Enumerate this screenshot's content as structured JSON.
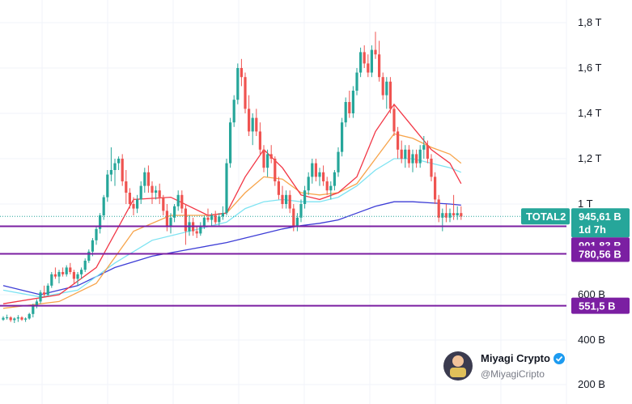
{
  "chart_data": {
    "type": "candlestick",
    "symbol": "TOTAL2",
    "price_scale": {
      "ticks": [
        {
          "value": 1800,
          "label": "1,8 T"
        },
        {
          "value": 1600,
          "label": "1,6 T"
        },
        {
          "value": 1400,
          "label": "1,4 T"
        },
        {
          "value": 1200,
          "label": "1,2 T"
        },
        {
          "value": 1000,
          "label": "1 T"
        },
        {
          "value": 600,
          "label": "600 B"
        },
        {
          "value": 400,
          "label": "400 B"
        },
        {
          "value": 200,
          "label": "200 B"
        }
      ],
      "unit": "B"
    },
    "current": {
      "symbol": "TOTAL2",
      "price_label": "945,61 B",
      "countdown": "1d 7h",
      "value": 945.61
    },
    "levels": [
      {
        "value": 901.83,
        "label": "901,83 B"
      },
      {
        "value": 780.56,
        "label": "780,56 B"
      },
      {
        "value": 551.5,
        "label": "551,5 B"
      }
    ],
    "colors": {
      "up": "#26a69a",
      "down": "#ef5350",
      "level": "#7b1fa2",
      "ma_red": "#f23645",
      "ma_orange": "#f7a44a",
      "ma_cyan": "#7de3f2",
      "ma_blue": "#3d3dd6",
      "label_teal": "#26a69a",
      "label_purple": "#7b1fa2"
    },
    "candles": [
      [
        490,
        505,
        485,
        498
      ],
      [
        498,
        512,
        490,
        500
      ],
      [
        500,
        505,
        480,
        488
      ],
      [
        488,
        500,
        475,
        495
      ],
      [
        495,
        510,
        480,
        500
      ],
      [
        500,
        505,
        485,
        490
      ],
      [
        490,
        500,
        480,
        495
      ],
      [
        495,
        520,
        490,
        515
      ],
      [
        515,
        560,
        500,
        550
      ],
      [
        550,
        580,
        540,
        570
      ],
      [
        570,
        620,
        560,
        610
      ],
      [
        610,
        640,
        590,
        600
      ],
      [
        600,
        650,
        595,
        640
      ],
      [
        640,
        700,
        630,
        690
      ],
      [
        690,
        720,
        670,
        680
      ],
      [
        680,
        710,
        650,
        700
      ],
      [
        700,
        720,
        680,
        690
      ],
      [
        690,
        730,
        680,
        720
      ],
      [
        720,
        740,
        690,
        700
      ],
      [
        700,
        710,
        650,
        670
      ],
      [
        670,
        700,
        640,
        690
      ],
      [
        690,
        720,
        670,
        710
      ],
      [
        710,
        760,
        700,
        750
      ],
      [
        750,
        800,
        740,
        790
      ],
      [
        790,
        850,
        770,
        840
      ],
      [
        840,
        900,
        820,
        890
      ],
      [
        890,
        960,
        870,
        950
      ],
      [
        950,
        1040,
        930,
        1030
      ],
      [
        1030,
        1150,
        1010,
        1130
      ],
      [
        1130,
        1250,
        1100,
        1150
      ],
      [
        1150,
        1200,
        1080,
        1180
      ],
      [
        1180,
        1210,
        1150,
        1200
      ],
      [
        1200,
        1220,
        1080,
        1100
      ],
      [
        1100,
        1150,
        1000,
        1050
      ],
      [
        1050,
        1070,
        980,
        1000
      ],
      [
        1000,
        1030,
        950,
        980
      ],
      [
        980,
        1040,
        960,
        1020
      ],
      [
        1020,
        1100,
        1000,
        1080
      ],
      [
        1080,
        1160,
        1050,
        1140
      ],
      [
        1140,
        1170,
        1050,
        1080
      ],
      [
        1080,
        1100,
        1000,
        1050
      ],
      [
        1050,
        1080,
        1020,
        1060
      ],
      [
        1060,
        1090,
        1000,
        1030
      ],
      [
        1030,
        1040,
        950,
        970
      ],
      [
        970,
        1000,
        880,
        900
      ],
      [
        900,
        960,
        870,
        940
      ],
      [
        940,
        1000,
        920,
        990
      ],
      [
        990,
        1060,
        970,
        1040
      ],
      [
        1040,
        1060,
        960,
        980
      ],
      [
        980,
        1000,
        820,
        880
      ],
      [
        880,
        950,
        860,
        920
      ],
      [
        920,
        940,
        860,
        880
      ],
      [
        880,
        900,
        850,
        870
      ],
      [
        870,
        920,
        860,
        900
      ],
      [
        900,
        950,
        890,
        940
      ],
      [
        940,
        980,
        920,
        930
      ],
      [
        930,
        960,
        900,
        950
      ],
      [
        950,
        970,
        910,
        920
      ],
      [
        920,
        960,
        900,
        945
      ],
      [
        945,
        990,
        930,
        960
      ],
      [
        960,
        1200,
        950,
        1180
      ],
      [
        1180,
        1380,
        1160,
        1360
      ],
      [
        1360,
        1480,
        1340,
        1460
      ],
      [
        1460,
        1620,
        1440,
        1600
      ],
      [
        1600,
        1640,
        1520,
        1560
      ],
      [
        1560,
        1580,
        1400,
        1420
      ],
      [
        1420,
        1480,
        1300,
        1320
      ],
      [
        1320,
        1400,
        1260,
        1380
      ],
      [
        1380,
        1420,
        1300,
        1320
      ],
      [
        1320,
        1360,
        1220,
        1240
      ],
      [
        1240,
        1260,
        1140,
        1160
      ],
      [
        1160,
        1240,
        1120,
        1220
      ],
      [
        1220,
        1260,
        1180,
        1200
      ],
      [
        1200,
        1210,
        1080,
        1100
      ],
      [
        1100,
        1120,
        1020,
        1040
      ],
      [
        1040,
        1080,
        980,
        1000
      ],
      [
        1000,
        1060,
        980,
        1040
      ],
      [
        1040,
        1060,
        960,
        980
      ],
      [
        980,
        1000,
        880,
        900
      ],
      [
        900,
        960,
        880,
        940
      ],
      [
        940,
        1020,
        920,
        1000
      ],
      [
        1000,
        1080,
        980,
        1060
      ],
      [
        1060,
        1140,
        1040,
        1120
      ],
      [
        1120,
        1200,
        1090,
        1180
      ],
      [
        1180,
        1200,
        1100,
        1120
      ],
      [
        1120,
        1160,
        1080,
        1140
      ],
      [
        1140,
        1170,
        1080,
        1100
      ],
      [
        1100,
        1120,
        1040,
        1060
      ],
      [
        1060,
        1100,
        1020,
        1080
      ],
      [
        1080,
        1150,
        1060,
        1140
      ],
      [
        1140,
        1250,
        1120,
        1230
      ],
      [
        1230,
        1380,
        1210,
        1360
      ],
      [
        1360,
        1470,
        1340,
        1450
      ],
      [
        1450,
        1500,
        1380,
        1400
      ],
      [
        1400,
        1520,
        1380,
        1500
      ],
      [
        1500,
        1600,
        1480,
        1580
      ],
      [
        1580,
        1690,
        1560,
        1670
      ],
      [
        1670,
        1700,
        1600,
        1620
      ],
      [
        1620,
        1660,
        1560,
        1580
      ],
      [
        1580,
        1700,
        1560,
        1680
      ],
      [
        1680,
        1760,
        1640,
        1660
      ],
      [
        1660,
        1720,
        1540,
        1560
      ],
      [
        1560,
        1580,
        1460,
        1480
      ],
      [
        1480,
        1560,
        1420,
        1540
      ],
      [
        1540,
        1560,
        1400,
        1420
      ],
      [
        1420,
        1440,
        1300,
        1320
      ],
      [
        1320,
        1340,
        1200,
        1240
      ],
      [
        1240,
        1280,
        1180,
        1200
      ],
      [
        1200,
        1260,
        1160,
        1240
      ],
      [
        1240,
        1260,
        1160,
        1180
      ],
      [
        1180,
        1240,
        1140,
        1220
      ],
      [
        1220,
        1240,
        1160,
        1180
      ],
      [
        1180,
        1260,
        1160,
        1240
      ],
      [
        1240,
        1300,
        1200,
        1260
      ],
      [
        1260,
        1280,
        1180,
        1200
      ],
      [
        1200,
        1220,
        1100,
        1120
      ],
      [
        1120,
        1140,
        1000,
        1020
      ],
      [
        1020,
        1040,
        920,
        940
      ],
      [
        940,
        980,
        880,
        960
      ],
      [
        960,
        1000,
        920,
        940
      ],
      [
        940,
        980,
        920,
        960
      ],
      [
        960,
        1040,
        930,
        950
      ],
      [
        950,
        990,
        930,
        960
      ],
      [
        960,
        990,
        930,
        945
      ]
    ],
    "ma_red": [
      [
        0,
        560
      ],
      [
        15,
        600
      ],
      [
        25,
        720
      ],
      [
        35,
        1020
      ],
      [
        45,
        1030
      ],
      [
        55,
        950
      ],
      [
        60,
        960
      ],
      [
        65,
        1120
      ],
      [
        70,
        1240
      ],
      [
        75,
        1160
      ],
      [
        80,
        1040
      ],
      [
        85,
        1020
      ],
      [
        90,
        1050
      ],
      [
        95,
        1120
      ],
      [
        100,
        1320
      ],
      [
        105,
        1440
      ],
      [
        110,
        1340
      ],
      [
        115,
        1240
      ],
      [
        120,
        1180
      ],
      [
        123,
        1090
      ]
    ],
    "ma_orange": [
      [
        0,
        540
      ],
      [
        15,
        570
      ],
      [
        25,
        650
      ],
      [
        35,
        880
      ],
      [
        45,
        950
      ],
      [
        55,
        950
      ],
      [
        60,
        960
      ],
      [
        65,
        1050
      ],
      [
        70,
        1120
      ],
      [
        75,
        1110
      ],
      [
        80,
        1050
      ],
      [
        85,
        1040
      ],
      [
        90,
        1050
      ],
      [
        95,
        1090
      ],
      [
        100,
        1200
      ],
      [
        105,
        1310
      ],
      [
        110,
        1290
      ],
      [
        115,
        1250
      ],
      [
        120,
        1220
      ],
      [
        123,
        1180
      ]
    ],
    "ma_cyan": [
      [
        0,
        620
      ],
      [
        10,
        590
      ],
      [
        20,
        620
      ],
      [
        30,
        740
      ],
      [
        40,
        840
      ],
      [
        50,
        880
      ],
      [
        60,
        920
      ],
      [
        65,
        980
      ],
      [
        70,
        1010
      ],
      [
        75,
        1020
      ],
      [
        80,
        1010
      ],
      [
        85,
        1010
      ],
      [
        90,
        1030
      ],
      [
        95,
        1080
      ],
      [
        100,
        1150
      ],
      [
        105,
        1200
      ],
      [
        110,
        1200
      ],
      [
        115,
        1180
      ],
      [
        120,
        1160
      ],
      [
        123,
        1140
      ]
    ],
    "ma_blue": [
      [
        0,
        640
      ],
      [
        10,
        600
      ],
      [
        20,
        640
      ],
      [
        30,
        720
      ],
      [
        40,
        770
      ],
      [
        50,
        800
      ],
      [
        60,
        830
      ],
      [
        65,
        850
      ],
      [
        70,
        870
      ],
      [
        75,
        890
      ],
      [
        80,
        905
      ],
      [
        85,
        915
      ],
      [
        90,
        930
      ],
      [
        95,
        960
      ],
      [
        100,
        990
      ],
      [
        105,
        1010
      ],
      [
        110,
        1010
      ],
      [
        115,
        1005
      ],
      [
        120,
        1000
      ],
      [
        123,
        995
      ]
    ]
  },
  "watermark": {
    "name": "Miyagi Crypto",
    "handle": "@MiyagiCripto"
  }
}
